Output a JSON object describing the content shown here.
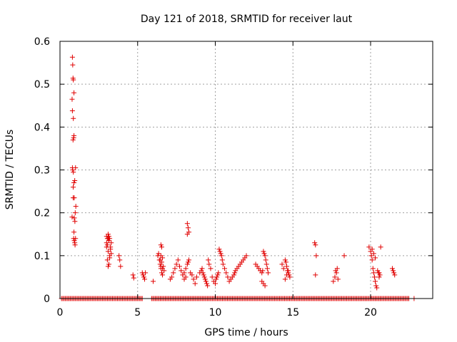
{
  "chart_data": {
    "type": "scatter",
    "title": "Day 121 of 2018, SRMTID for receiver laut",
    "xlabel": "GPS time / hours",
    "ylabel": "SRMTID / TECUs",
    "xlim": [
      0,
      24
    ],
    "ylim": [
      0,
      0.6
    ],
    "xticks": [
      0,
      5,
      10,
      15,
      20
    ],
    "yticks": [
      0,
      0.1,
      0.2,
      0.3,
      0.4,
      0.5,
      0.6
    ],
    "ytick_labels": [
      "0",
      "0.1",
      "0.2",
      "0.3",
      "0.4",
      "0.5",
      "0.6"
    ],
    "grid": true,
    "marker": "+",
    "color": "#e00000",
    "zero_segments": [
      [
        0.1,
        5.3
      ],
      [
        5.9,
        22.5
      ]
    ],
    "zero_extra": [
      22.8
    ],
    "series": [
      {
        "name": "SRMTID",
        "x": [
          0.8,
          0.82,
          0.84,
          0.86,
          0.9,
          0.78,
          0.8,
          0.86,
          0.9,
          0.88,
          0.84,
          0.8,
          0.82,
          0.86,
          1.0,
          0.95,
          0.9,
          0.78,
          0.85,
          0.92,
          0.98,
          1.02,
          0.96,
          0.9,
          0.88,
          0.92,
          0.95,
          0.97,
          1.0,
          0.85,
          0.92,
          3.0,
          3.05,
          3.1,
          3.15,
          3.2,
          3.25,
          3.3,
          3.0,
          3.1,
          3.2,
          3.05,
          3.15,
          3.1,
          3.25,
          3.3,
          3.2,
          3.15,
          3.1,
          3.05,
          3.0,
          3.8,
          3.85,
          3.9,
          4.7,
          4.75,
          5.3,
          5.35,
          5.4,
          5.45,
          5.5,
          6.0,
          6.3,
          6.35,
          6.4,
          6.5,
          6.55,
          6.6,
          6.45,
          6.5,
          6.55,
          6.6,
          6.65,
          6.7,
          6.5,
          6.55,
          6.6,
          6.45,
          6.5,
          7.1,
          7.2,
          7.3,
          7.4,
          7.5,
          7.6,
          7.7,
          7.8,
          7.9,
          8.0,
          8.1,
          8.2,
          8.25,
          8.3,
          8.2,
          8.25,
          8.2,
          8.3,
          8.1,
          8.0,
          8.4,
          8.5,
          8.6,
          8.7,
          8.8,
          9.0,
          9.1,
          9.15,
          9.2,
          9.25,
          9.3,
          9.35,
          9.4,
          9.45,
          9.5,
          9.55,
          9.6,
          9.7,
          9.8,
          9.9,
          10.0,
          10.05,
          10.1,
          10.15,
          10.2,
          10.25,
          10.3,
          10.35,
          10.4,
          10.45,
          10.5,
          10.6,
          10.7,
          10.8,
          10.9,
          11.0,
          11.1,
          11.2,
          11.25,
          11.3,
          11.4,
          11.5,
          11.6,
          11.7,
          11.8,
          11.9,
          12.0,
          12.6,
          12.7,
          12.8,
          12.9,
          13.0,
          13.05,
          13.1,
          13.15,
          13.2,
          13.25,
          13.3,
          13.0,
          13.1,
          13.2,
          13.35,
          13.4,
          14.3,
          14.4,
          14.5,
          14.55,
          14.6,
          14.65,
          14.7,
          14.75,
          14.8,
          14.5,
          14.6,
          14.7,
          16.4,
          16.45,
          16.5,
          16.45,
          17.6,
          17.7,
          17.8,
          17.75,
          17.85,
          17.9,
          18.3,
          19.9,
          20.0,
          20.05,
          20.1,
          20.15,
          20.2,
          20.25,
          20.3,
          20.35,
          20.4,
          20.5,
          20.55,
          20.6,
          20.65,
          20.1,
          20.2,
          20.3,
          20.45,
          20.55,
          21.4,
          21.45,
          21.5,
          21.55
        ],
        "y": [
          0.563,
          0.545,
          0.514,
          0.51,
          0.48,
          0.465,
          0.438,
          0.42,
          0.38,
          0.375,
          0.37,
          0.305,
          0.3,
          0.295,
          0.305,
          0.275,
          0.27,
          0.19,
          0.235,
          0.235,
          0.2,
          0.215,
          0.18,
          0.155,
          0.14,
          0.135,
          0.13,
          0.125,
          0.14,
          0.26,
          0.188,
          0.13,
          0.14,
          0.15,
          0.135,
          0.14,
          0.12,
          0.13,
          0.12,
          0.11,
          0.1,
          0.09,
          0.08,
          0.075,
          0.115,
          0.105,
          0.095,
          0.145,
          0.14,
          0.125,
          0.145,
          0.1,
          0.09,
          0.075,
          0.055,
          0.048,
          0.06,
          0.055,
          0.05,
          0.045,
          0.06,
          0.04,
          0.1,
          0.105,
          0.09,
          0.125,
          0.12,
          0.095,
          0.08,
          0.07,
          0.06,
          0.055,
          0.075,
          0.065,
          0.1,
          0.085,
          0.07,
          0.09,
          0.075,
          0.045,
          0.05,
          0.06,
          0.07,
          0.08,
          0.09,
          0.075,
          0.065,
          0.055,
          0.06,
          0.07,
          0.08,
          0.085,
          0.09,
          0.175,
          0.165,
          0.15,
          0.155,
          0.05,
          0.045,
          0.06,
          0.055,
          0.045,
          0.035,
          0.05,
          0.06,
          0.065,
          0.07,
          0.06,
          0.055,
          0.05,
          0.045,
          0.04,
          0.035,
          0.03,
          0.09,
          0.08,
          0.07,
          0.05,
          0.04,
          0.035,
          0.045,
          0.05,
          0.055,
          0.06,
          0.115,
          0.11,
          0.105,
          0.1,
          0.09,
          0.08,
          0.07,
          0.06,
          0.05,
          0.04,
          0.045,
          0.05,
          0.055,
          0.06,
          0.065,
          0.07,
          0.075,
          0.08,
          0.085,
          0.09,
          0.095,
          0.1,
          0.08,
          0.075,
          0.07,
          0.065,
          0.06,
          0.065,
          0.11,
          0.105,
          0.1,
          0.09,
          0.08,
          0.04,
          0.035,
          0.03,
          0.07,
          0.06,
          0.08,
          0.07,
          0.09,
          0.085,
          0.075,
          0.065,
          0.06,
          0.055,
          0.05,
          0.045,
          0.055,
          0.065,
          0.13,
          0.125,
          0.1,
          0.055,
          0.04,
          0.05,
          0.06,
          0.065,
          0.07,
          0.045,
          0.1,
          0.12,
          0.11,
          0.1,
          0.09,
          0.07,
          0.06,
          0.05,
          0.04,
          0.03,
          0.025,
          0.06,
          0.05,
          0.055,
          0.12,
          0.115,
          0.105,
          0.095,
          0.065,
          0.06,
          0.07,
          0.065,
          0.06,
          0.055
        ]
      }
    ]
  }
}
